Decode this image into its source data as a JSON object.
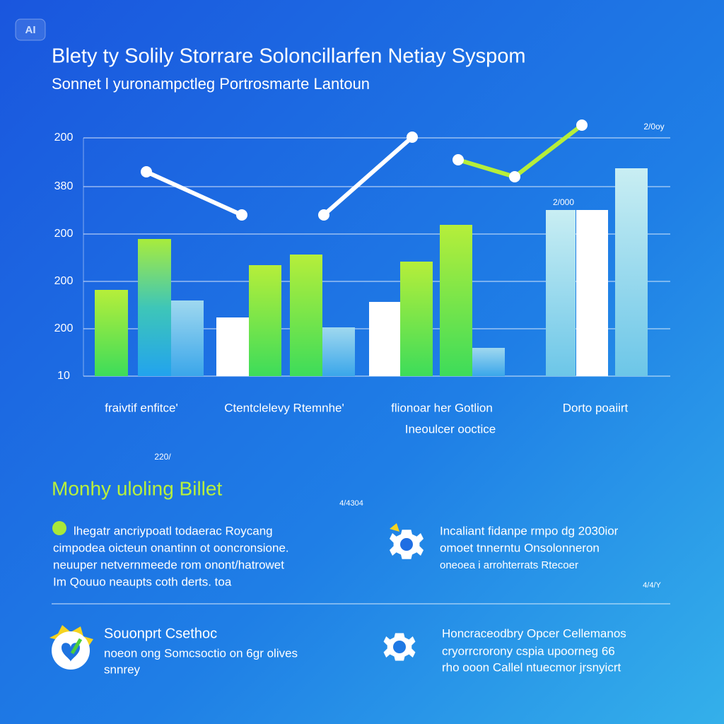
{
  "badge": "AI",
  "header": {
    "title": "Blety ty Solily Storrare Soloncillarfen Netiay Syspom",
    "subtitle": "Sonnet l yuronampctleg Portrosmarte Lantoun"
  },
  "chart": {
    "axis_labels": [
      "200",
      "380",
      "200",
      "200",
      "200",
      "10"
    ],
    "corner_label": "2/0oy",
    "bar_label": "2/000",
    "categories": [
      {
        "text": "fraivtif enfitce'"
      },
      {
        "text": "Ctentclelevy Rtemnhe'"
      },
      {
        "text": "flionoar her Gotlion",
        "sub": "Ineoulcer ooctice"
      },
      {
        "text": "Dorto poaiirt"
      }
    ]
  },
  "section": {
    "date": "220/",
    "heading": "Monhy uloling Billet",
    "note": "4/4304",
    "left_block": [
      "lhegatr ancriypoatl todaerac Roycang",
      "cimpodea oicteun onantinn ot ooncronsione.",
      "neuuper netvernmeede rom onont/hatrowet",
      "Im Qouuo neaupts coth derts. toa"
    ],
    "right_block": [
      "Incaliant fidanpe rmpo dg 2030ior",
      "omoet tnnerntu Onsolonneron",
      "oneoea i arrohterrats Rtecoer"
    ],
    "right_note": "4/4/Y"
  },
  "footer": {
    "left": {
      "heading": "Souonprt Csethoc",
      "lines": [
        "noeon ong Somcsoctio on 6gr olives",
        "snnrey"
      ]
    },
    "right": {
      "lines": [
        "Honcraceodbry Opcer Cellemanos",
        "cryorrcrorony cspia upoorneg 66",
        "rho ooon Callel ntuecmor jrsnyicrt"
      ]
    }
  }
}
